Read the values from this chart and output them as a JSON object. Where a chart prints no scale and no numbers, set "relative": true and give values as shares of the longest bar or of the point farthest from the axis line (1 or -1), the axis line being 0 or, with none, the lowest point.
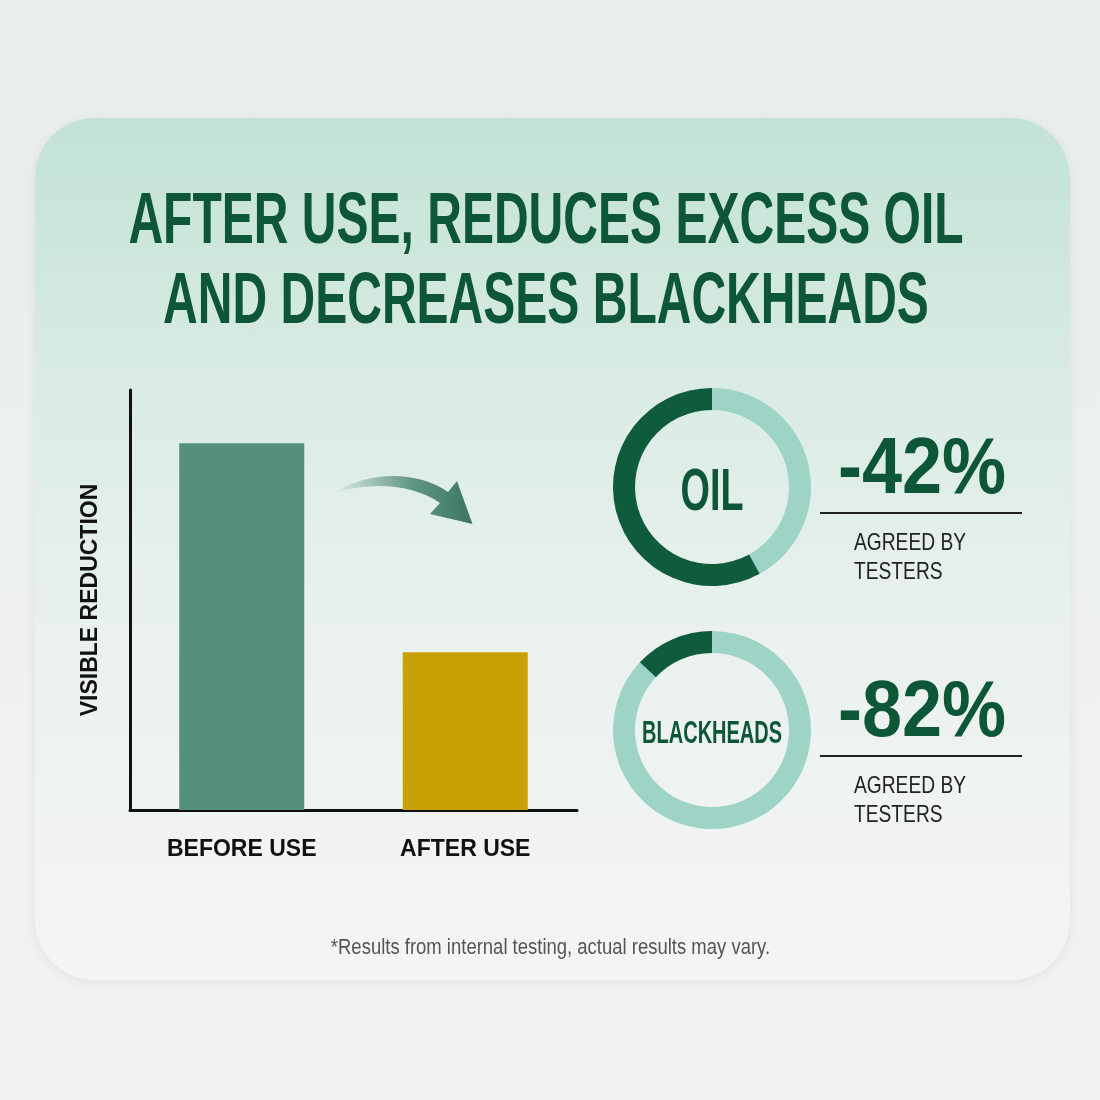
{
  "chart_data": [
    {
      "type": "bar",
      "title": "AFTER USE, REDUCES EXCESS OIL AND DECREASES BLACKHEADS",
      "ylabel": "VISIBLE REDUCTION",
      "categories": [
        "BEFORE USE",
        "AFTER USE"
      ],
      "values": [
        1,
        0.43
      ],
      "colors": [
        "#558f7d",
        "#c8a204"
      ],
      "relative": true,
      "annotations": [
        "*Results from internal testing, actual results may vary."
      ]
    },
    {
      "type": "donut",
      "title": "OIL",
      "categories": [
        null,
        null
      ],
      "values": [
        42,
        58
      ],
      "colors": [
        "#9dd4c5",
        "#0f5c3c"
      ],
      "annotations": [
        "-42%",
        "AGREED BY TESTERS"
      ]
    },
    {
      "type": "donut",
      "title": "BLACKHEADS",
      "categories": [
        null,
        null
      ],
      "values": [
        87,
        13
      ],
      "colors": [
        "#9dd4c5",
        "#0f5c3c"
      ],
      "annotations": [
        "-82%",
        "AGREED BY TESTERS"
      ]
    }
  ]
}
